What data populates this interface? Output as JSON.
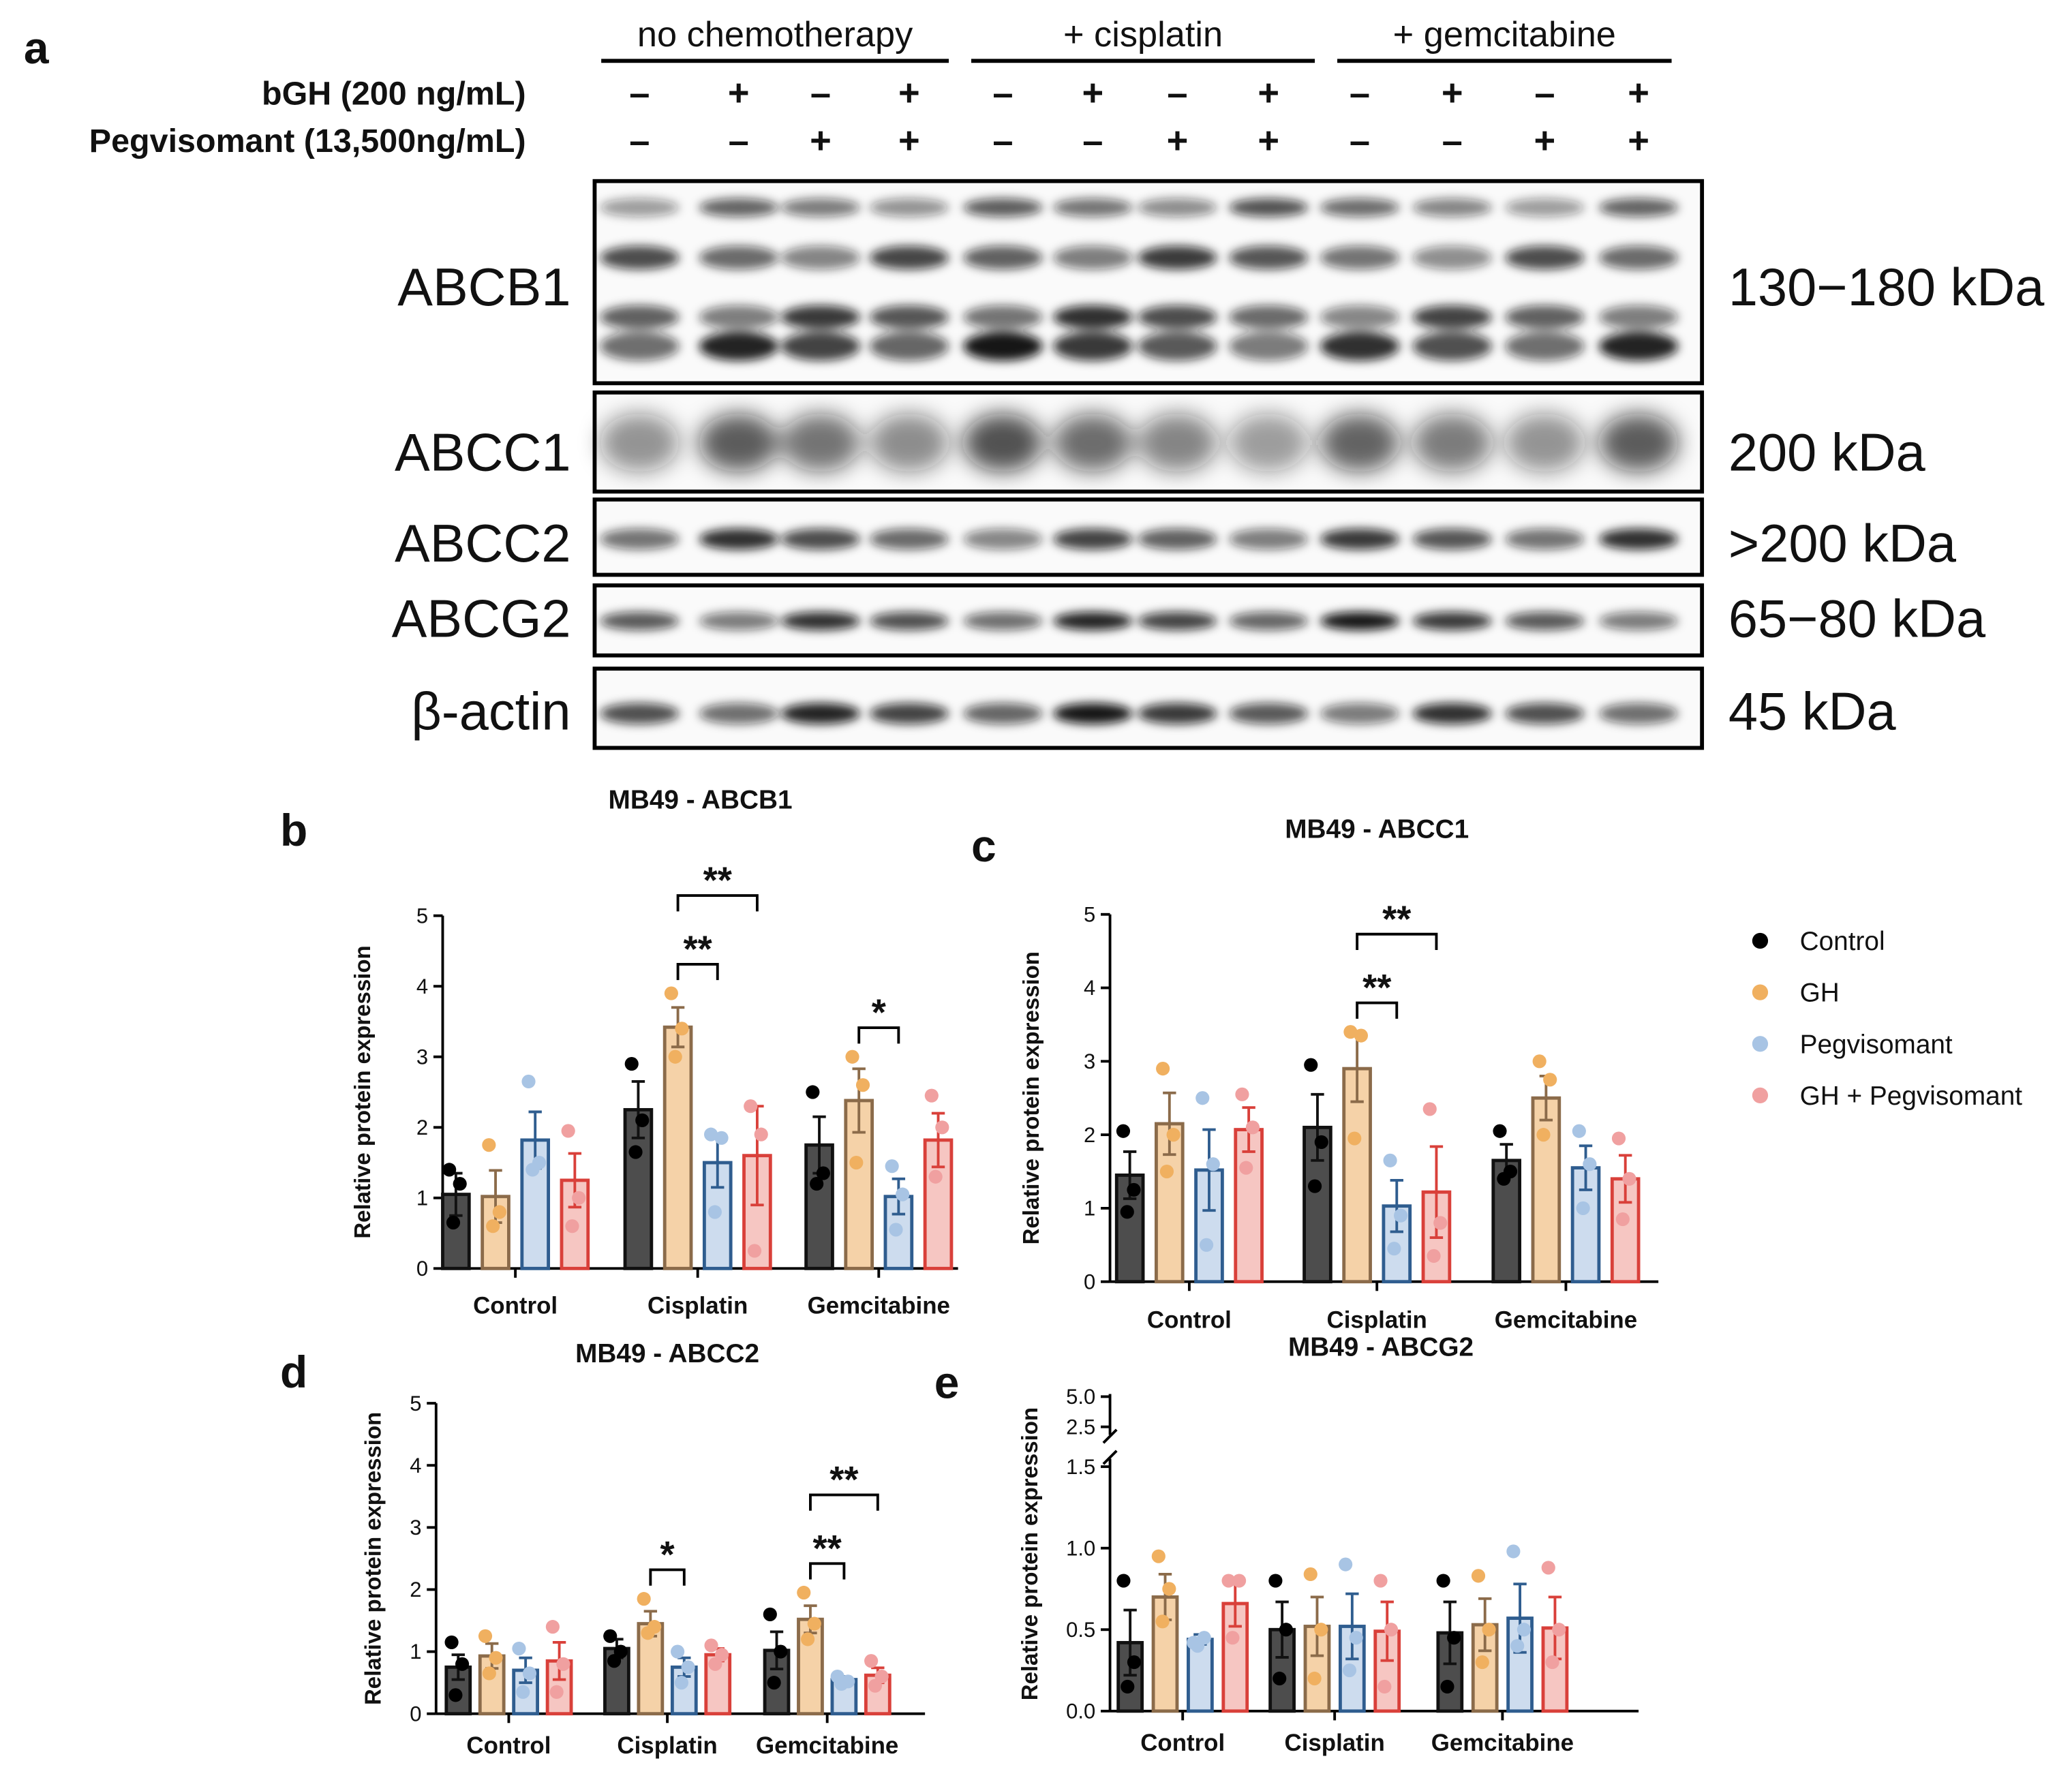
{
  "panel_a": {
    "label": "a",
    "groups": [
      "no chemotherapy",
      "+ cisplatin",
      "+ gemcitabine"
    ],
    "rows": [
      {
        "label": "bGH (200 ng/mL)",
        "signs": [
          "–",
          "+",
          "–",
          "+",
          "–",
          "+",
          "–",
          "+",
          "–",
          "+",
          "–",
          "+"
        ]
      },
      {
        "label": "Pegvisomant (13,500ng/mL)",
        "signs": [
          "–",
          "–",
          "+",
          "+",
          "–",
          "–",
          "+",
          "+",
          "–",
          "–",
          "+",
          "+"
        ]
      }
    ],
    "blots": [
      {
        "name": "ABCB1",
        "size": "130−180 kDa"
      },
      {
        "name": "ABCC1",
        "size": "200 kDa"
      },
      {
        "name": "ABCC2",
        "size": ">200 kDa"
      },
      {
        "name": "ABCG2",
        "size": "65−80 kDa"
      },
      {
        "name": "β-actin",
        "size": "45 kDa"
      }
    ]
  },
  "chart_data": [
    {
      "type": "bar",
      "panel": "b",
      "title": "MB49 - ABCB1",
      "y_label": "Relative protein expression",
      "categories": [
        "Control",
        "Cisplatin",
        "Gemcitabine"
      ],
      "ylim": [
        0,
        5
      ],
      "yticks": [
        0,
        1,
        2,
        3,
        4,
        5
      ],
      "series": [
        {
          "name": "Control",
          "color": "#111111",
          "fill": "#4d4d4d",
          "point_color": "#000000",
          "values": [
            1.05,
            2.25,
            1.75
          ],
          "errors": [
            0.3,
            0.4,
            0.4
          ],
          "points": [
            [
              1.4,
              1.2,
              0.65
            ],
            [
              2.9,
              2.1,
              1.65
            ],
            [
              2.5,
              1.35,
              1.2
            ]
          ]
        },
        {
          "name": "GH",
          "color": "#8b6b4a",
          "fill": "#f5d2a8",
          "point_color": "#f0b060",
          "values": [
            1.02,
            3.42,
            2.38
          ],
          "errors": [
            0.37,
            0.28,
            0.45
          ],
          "points": [
            [
              1.75,
              0.8,
              0.6
            ],
            [
              3.9,
              3.4,
              3.0
            ],
            [
              3.0,
              2.6,
              1.5
            ]
          ]
        },
        {
          "name": "Pegvisomant",
          "color": "#2f5d8f",
          "fill": "#cddcee",
          "point_color": "#a8c4e4",
          "values": [
            1.82,
            1.5,
            1.02
          ],
          "errors": [
            0.4,
            0.35,
            0.25
          ],
          "points": [
            [
              2.65,
              1.5,
              1.4
            ],
            [
              1.9,
              1.85,
              0.8
            ],
            [
              1.45,
              1.05,
              0.55
            ]
          ]
        },
        {
          "name": "GH + Pegvisomant",
          "color": "#d9403a",
          "fill": "#f6c6c2",
          "point_color": "#f0a0a0",
          "values": [
            1.25,
            1.6,
            1.82
          ],
          "errors": [
            0.38,
            0.7,
            0.38
          ],
          "points": [
            [
              1.95,
              1.0,
              0.6
            ],
            [
              2.3,
              1.9,
              0.25
            ],
            [
              2.45,
              2.0,
              1.3
            ]
          ]
        }
      ],
      "annotations": [
        {
          "text": "**",
          "category": "Cisplatin",
          "between": [
            "GH",
            "Pegvisomant"
          ]
        },
        {
          "text": "**",
          "category": "Cisplatin",
          "between": [
            "GH",
            "GH + Pegvisomant"
          ]
        },
        {
          "text": "*",
          "category": "Gemcitabine",
          "between": [
            "GH",
            "Pegvisomant"
          ]
        }
      ]
    },
    {
      "type": "bar",
      "panel": "c",
      "title": "MB49 - ABCC1",
      "y_label": "Relative protein expression",
      "categories": [
        "Control",
        "Cisplatin",
        "Gemcitabine"
      ],
      "ylim": [
        0,
        5
      ],
      "yticks": [
        0,
        1,
        2,
        3,
        4,
        5
      ],
      "series": [
        {
          "name": "Control",
          "color": "#111111",
          "fill": "#4d4d4d",
          "point_color": "#000000",
          "values": [
            1.45,
            2.1,
            1.65
          ],
          "errors": [
            0.32,
            0.45,
            0.22
          ],
          "points": [
            [
              2.05,
              1.25,
              0.95
            ],
            [
              2.95,
              1.9,
              1.3
            ],
            [
              2.05,
              1.5,
              1.4
            ]
          ]
        },
        {
          "name": "GH",
          "color": "#8b6b4a",
          "fill": "#f5d2a8",
          "point_color": "#f0b060",
          "values": [
            2.15,
            2.9,
            2.5
          ],
          "errors": [
            0.42,
            0.45,
            0.3
          ],
          "points": [
            [
              2.9,
              2.0,
              1.5
            ],
            [
              3.4,
              3.35,
              1.95
            ],
            [
              3.0,
              2.75,
              2.0
            ]
          ]
        },
        {
          "name": "Pegvisomant",
          "color": "#2f5d8f",
          "fill": "#cddcee",
          "point_color": "#a8c4e4",
          "values": [
            1.52,
            1.03,
            1.55
          ],
          "errors": [
            0.55,
            0.35,
            0.3
          ],
          "points": [
            [
              2.5,
              1.6,
              0.5
            ],
            [
              1.65,
              0.9,
              0.45
            ],
            [
              2.05,
              1.6,
              1.0
            ]
          ]
        },
        {
          "name": "GH + Pegvisomant",
          "color": "#d9403a",
          "fill": "#f6c6c2",
          "point_color": "#f0a0a0",
          "values": [
            2.07,
            1.22,
            1.4
          ],
          "errors": [
            0.3,
            0.62,
            0.32
          ],
          "points": [
            [
              2.55,
              2.1,
              1.55
            ],
            [
              2.35,
              0.8,
              0.35
            ],
            [
              1.95,
              1.4,
              0.85
            ]
          ]
        }
      ],
      "annotations": [
        {
          "text": "**",
          "category": "Cisplatin",
          "between": [
            "GH",
            "Pegvisomant"
          ]
        },
        {
          "text": "**",
          "category": "Cisplatin",
          "between": [
            "GH",
            "GH + Pegvisomant"
          ]
        }
      ]
    },
    {
      "type": "bar",
      "panel": "d",
      "title": "MB49 - ABCC2",
      "y_label": "Relative protein expression",
      "categories": [
        "Control",
        "Cisplatin",
        "Gemcitabine"
      ],
      "ylim": [
        0,
        5
      ],
      "yticks": [
        0,
        1,
        2,
        3,
        4,
        5
      ],
      "series": [
        {
          "name": "Control",
          "color": "#111111",
          "fill": "#4d4d4d",
          "point_color": "#000000",
          "values": [
            0.75,
            1.05,
            1.02
          ],
          "errors": [
            0.2,
            0.15,
            0.3
          ],
          "points": [
            [
              1.15,
              0.8,
              0.3
            ],
            [
              1.25,
              1.0,
              0.85
            ],
            [
              1.6,
              1.0,
              0.5
            ]
          ]
        },
        {
          "name": "GH",
          "color": "#8b6b4a",
          "fill": "#f5d2a8",
          "point_color": "#f0b060",
          "values": [
            0.93,
            1.45,
            1.52
          ],
          "errors": [
            0.2,
            0.2,
            0.22
          ],
          "points": [
            [
              1.25,
              0.9,
              0.65
            ],
            [
              1.85,
              1.4,
              1.3
            ],
            [
              1.95,
              1.45,
              1.2
            ]
          ]
        },
        {
          "name": "Pegvisomant",
          "color": "#2f5d8f",
          "fill": "#cddcee",
          "point_color": "#a8c4e4",
          "values": [
            0.7,
            0.75,
            0.55
          ],
          "errors": [
            0.2,
            0.15,
            0.05
          ],
          "points": [
            [
              1.05,
              0.65,
              0.35
            ],
            [
              1.0,
              0.75,
              0.5
            ],
            [
              0.6,
              0.52,
              0.48
            ]
          ]
        },
        {
          "name": "GH + Pegvisomant",
          "color": "#d9403a",
          "fill": "#f6c6c2",
          "point_color": "#f0a0a0",
          "values": [
            0.85,
            0.95,
            0.62
          ],
          "errors": [
            0.3,
            0.1,
            0.12
          ],
          "points": [
            [
              1.4,
              0.8,
              0.35
            ],
            [
              1.1,
              0.95,
              0.8
            ],
            [
              0.85,
              0.6,
              0.45
            ]
          ]
        }
      ],
      "annotations": [
        {
          "text": "*",
          "category": "Cisplatin",
          "between": [
            "GH",
            "Pegvisomant"
          ]
        },
        {
          "text": "**",
          "category": "Gemcitabine",
          "between": [
            "GH",
            "Pegvisomant"
          ]
        },
        {
          "text": "**",
          "category": "Gemcitabine",
          "between": [
            "GH",
            "GH + Pegvisomant"
          ]
        }
      ]
    },
    {
      "type": "bar",
      "panel": "e",
      "title": "MB49 - ABCG2",
      "y_label": "Relative protein expression",
      "categories": [
        "Control",
        "Cisplatin",
        "Gemcitabine"
      ],
      "ylim": [
        0,
        1.5
      ],
      "yticks": [
        {
          "value": 0,
          "label": "0.0"
        },
        {
          "value": 0.5,
          "label": "0.5"
        },
        {
          "value": 1,
          "label": "1.0"
        },
        {
          "value": 1.5,
          "label": "1.5"
        }
      ],
      "ylim_upper": [
        1.5,
        5
      ],
      "yticks_upper": [
        {
          "value": 2.5,
          "label": "2.5"
        },
        {
          "value": 5,
          "label": "5.0"
        }
      ],
      "series": [
        {
          "name": "Control",
          "color": "#111111",
          "fill": "#4d4d4d",
          "point_color": "#000000",
          "values": [
            0.42,
            0.5,
            0.48
          ],
          "errors": [
            0.2,
            0.17,
            0.19
          ],
          "points": [
            [
              0.8,
              0.3,
              0.15
            ],
            [
              0.8,
              0.5,
              0.2
            ],
            [
              0.8,
              0.45,
              0.15
            ]
          ]
        },
        {
          "name": "GH",
          "color": "#8b6b4a",
          "fill": "#f5d2a8",
          "point_color": "#f0b060",
          "values": [
            0.7,
            0.52,
            0.53
          ],
          "errors": [
            0.14,
            0.18,
            0.16
          ],
          "points": [
            [
              0.95,
              0.75,
              0.55
            ],
            [
              0.84,
              0.5,
              0.2
            ],
            [
              0.83,
              0.5,
              0.3
            ]
          ]
        },
        {
          "name": "Pegvisomant",
          "color": "#2f5d8f",
          "fill": "#cddcee",
          "point_color": "#a8c4e4",
          "values": [
            0.44,
            0.52,
            0.57
          ],
          "errors": [
            0.03,
            0.2,
            0.21
          ],
          "points": [
            [
              0.42,
              0.45,
              0.4
            ],
            [
              0.9,
              0.45,
              0.25
            ],
            [
              0.98,
              0.5,
              0.4
            ]
          ]
        },
        {
          "name": "GH + Pegvisomant",
          "color": "#d9403a",
          "fill": "#f6c6c2",
          "point_color": "#f0a0a0",
          "values": [
            0.66,
            0.49,
            0.51
          ],
          "errors": [
            0.14,
            0.18,
            0.19
          ],
          "points": [
            [
              0.8,
              0.8,
              0.45
            ],
            [
              0.8,
              0.5,
              0.15
            ],
            [
              0.88,
              0.5,
              0.3
            ]
          ]
        }
      ],
      "annotations": []
    }
  ]
}
